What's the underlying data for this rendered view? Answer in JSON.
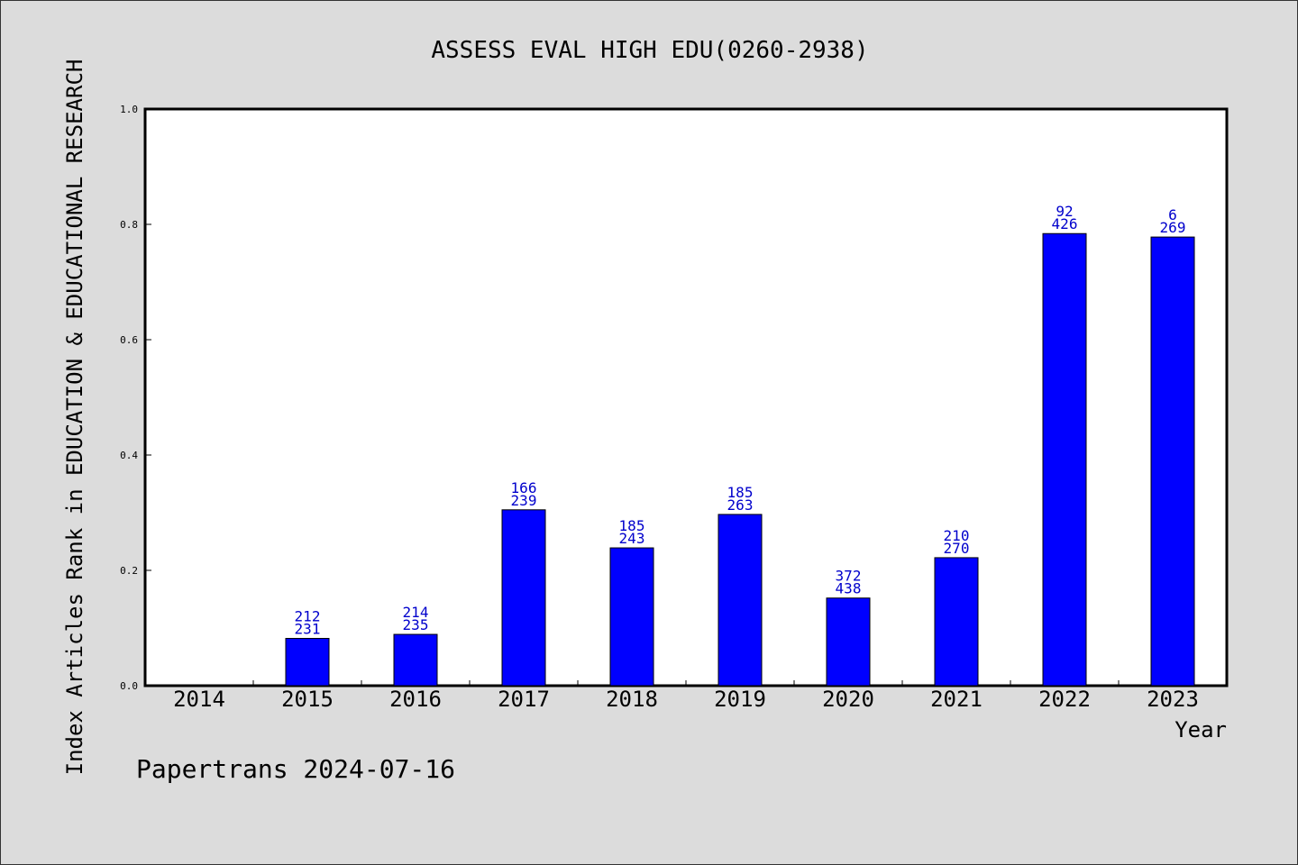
{
  "chart_data": {
    "type": "bar",
    "title": "ASSESS EVAL HIGH EDU(0260-2938)",
    "xlabel": "Year",
    "ylabel": "Index Articles Rank in EDUCATION & EDUCATIONAL RESEARCH",
    "ylim": [
      0,
      1.0
    ],
    "yticks": [
      "0.0",
      "0.2",
      "0.4",
      "0.6",
      "0.8",
      "1.0"
    ],
    "grid": false,
    "categories": [
      "2014",
      "2015",
      "2016",
      "2017",
      "2018",
      "2019",
      "2020",
      "2021",
      "2022",
      "2023"
    ],
    "values": [
      0,
      0.082,
      0.089,
      0.305,
      0.239,
      0.297,
      0.152,
      0.222,
      0.784,
      0.778
    ],
    "labels_top": [
      "",
      "212",
      "214",
      "166",
      "185",
      "185",
      "372",
      "210",
      "92",
      "6"
    ],
    "labels_bottom": [
      "",
      "231",
      "235",
      "239",
      "243",
      "263",
      "438",
      "270",
      "426",
      "269"
    ],
    "bar_color": "#0000ff",
    "label_color": "#0000cc"
  },
  "footer": "Papertrans 2024-07-16"
}
